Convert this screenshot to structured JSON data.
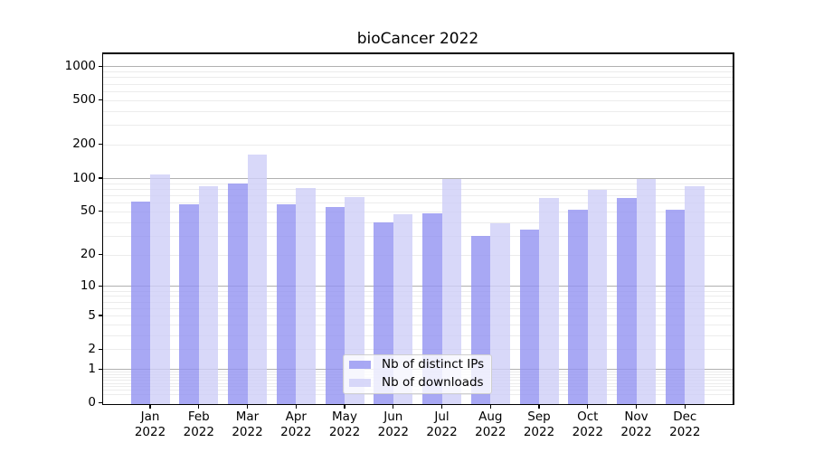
{
  "title": "bioCancer 2022",
  "chart_data": {
    "type": "bar",
    "title": "bioCancer 2022",
    "categories": [
      "Jan 2022",
      "Feb 2022",
      "Mar 2022",
      "Apr 2022",
      "May 2022",
      "Jun 2022",
      "Jul 2022",
      "Aug 2022",
      "Sep 2022",
      "Oct 2022",
      "Nov 2022",
      "Dec 2022"
    ],
    "series": [
      {
        "name": "Nb of distinct IPs",
        "color": "rgba(146,146,241,0.8)",
        "apparent_color": "#a9a9f3",
        "values": [
          61,
          58,
          90,
          58,
          55,
          40,
          48,
          30,
          34,
          52,
          66,
          52
        ]
      },
      {
        "name": "Nb of downloads",
        "color": "rgba(206,206,248,0.8)",
        "apparent_color": "#d8d8f9",
        "values": [
          108,
          85,
          162,
          81,
          68,
          47,
          99,
          39,
          66,
          78,
          99,
          85
        ]
      }
    ],
    "yscale": "log1p",
    "y_ticks": [
      0,
      1,
      2,
      5,
      10,
      20,
      50,
      100,
      200,
      500,
      1000
    ],
    "ylim": [
      0,
      1333
    ],
    "grid": true,
    "legend_position": "lower center",
    "colors": {
      "axis": "#000000",
      "major_grid": "#b0b0b0",
      "minor_grid": "#ececec",
      "text": "#000000",
      "background": "#ffffff"
    }
  }
}
